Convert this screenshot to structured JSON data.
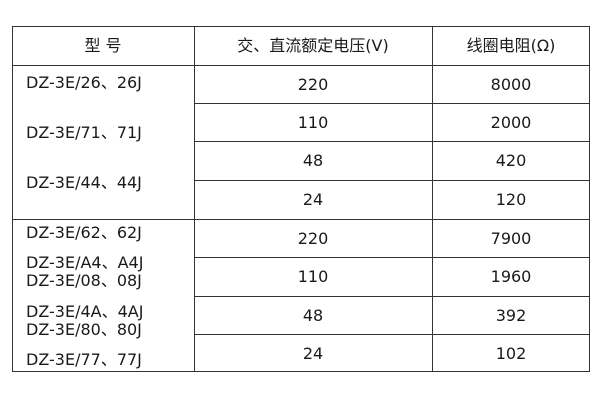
{
  "headers": {
    "model": "型 号",
    "voltage": "交、直流额定电压(V)",
    "resistance": "线圈电阻(Ω)"
  },
  "group1": {
    "models": [
      "DZ-3E/26、26J",
      "DZ-3E/71、71J",
      "DZ-3E/44、44J"
    ],
    "rows": [
      {
        "voltage": "220",
        "resistance": "8000"
      },
      {
        "voltage": "110",
        "resistance": "2000"
      },
      {
        "voltage": "48",
        "resistance": "420"
      },
      {
        "voltage": "24",
        "resistance": "120"
      }
    ]
  },
  "group2": {
    "models": [
      "DZ-3E/62、62J",
      "DZ-3E/A4、A4J",
      "DZ-3E/08、08J",
      "DZ-3E/4A、4AJ",
      "DZ-3E/80、80J",
      "DZ-3E/77、77J"
    ],
    "rows": [
      {
        "voltage": "220",
        "resistance": "7900"
      },
      {
        "voltage": "110",
        "resistance": "1960"
      },
      {
        "voltage": "48",
        "resistance": "392"
      },
      {
        "voltage": "24",
        "resistance": "102"
      }
    ]
  }
}
